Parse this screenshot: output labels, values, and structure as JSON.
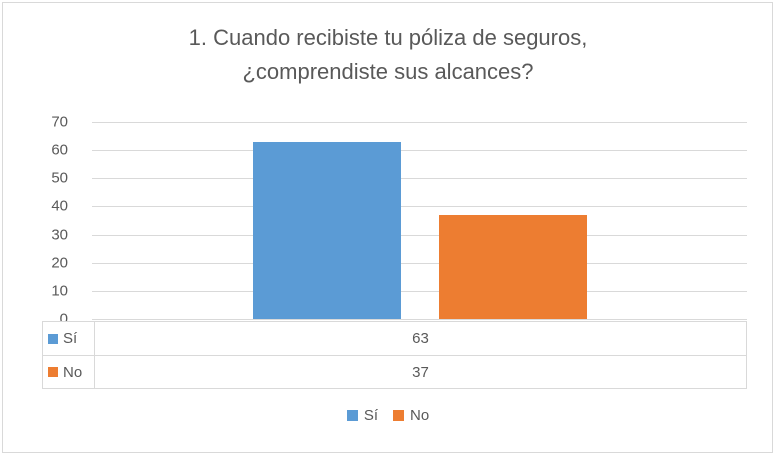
{
  "title": {
    "line1": "1. Cuando recibiste tu póliza de seguros,",
    "line2": "¿comprendiste sus alcances?"
  },
  "colors": {
    "series_si": "#5B9BD5",
    "series_no": "#ED7D31",
    "grid": "#D9D9D9",
    "text": "#595959"
  },
  "chart_data": {
    "type": "bar",
    "title": "1. Cuando recibiste tu póliza de seguros, ¿comprendiste sus alcances?",
    "categories": [
      ""
    ],
    "series": [
      {
        "name": "Sí",
        "values": [
          63
        ],
        "color": "#5B9BD5"
      },
      {
        "name": "No",
        "values": [
          37
        ],
        "color": "#ED7D31"
      }
    ],
    "xlabel": "",
    "ylabel": "",
    "ylim": [
      0,
      70
    ],
    "yticks": [
      0,
      10,
      20,
      30,
      40,
      50,
      60,
      70
    ],
    "grid": true,
    "legend_position": "bottom",
    "data_table": {
      "rows": [
        {
          "label": "Sí",
          "value": 63
        },
        {
          "label": "No",
          "value": 37
        }
      ]
    }
  }
}
